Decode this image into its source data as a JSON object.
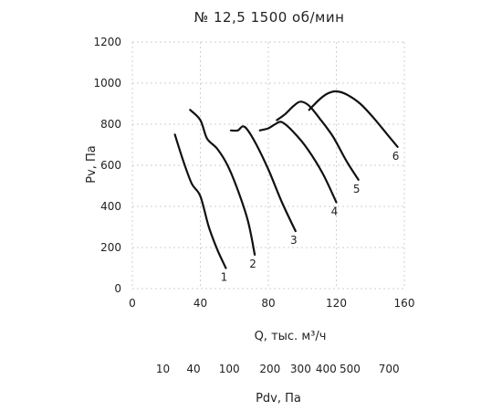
{
  "chart_data": {
    "type": "line",
    "title": "№ 12,5 1500 об/мин",
    "xlabel": "Q, тыс. м³/ч",
    "ylabel": "Pv, Па",
    "xlim": [
      0,
      160
    ],
    "ylim": [
      0,
      1200
    ],
    "xticks": [
      0,
      40,
      80,
      120,
      160
    ],
    "yticks": [
      0,
      200,
      400,
      600,
      800,
      1000,
      1200
    ],
    "grid": true,
    "secondary_axis": {
      "label": "Pdv, Па",
      "ticks": [
        {
          "label": "10",
          "q": 18
        },
        {
          "label": "40",
          "q": 36
        },
        {
          "label": "100",
          "q": 57
        },
        {
          "label": "200",
          "q": 81
        },
        {
          "label": "300",
          "q": 99
        },
        {
          "label": "400",
          "q": 114
        },
        {
          "label": "500",
          "q": 128
        },
        {
          "label": "700",
          "q": 151
        }
      ]
    },
    "series": [
      {
        "name": "1",
        "points": [
          [
            25,
            750
          ],
          [
            30,
            620
          ],
          [
            35,
            510
          ],
          [
            40,
            450
          ],
          [
            45,
            300
          ],
          [
            50,
            190
          ],
          [
            55,
            100
          ]
        ]
      },
      {
        "name": "2",
        "points": [
          [
            34,
            870
          ],
          [
            40,
            820
          ],
          [
            44,
            730
          ],
          [
            50,
            680
          ],
          [
            56,
            600
          ],
          [
            62,
            480
          ],
          [
            68,
            330
          ],
          [
            72,
            165
          ]
        ]
      },
      {
        "name": "3",
        "points": [
          [
            58,
            770
          ],
          [
            62,
            770
          ],
          [
            65,
            790
          ],
          [
            68,
            770
          ],
          [
            73,
            700
          ],
          [
            80,
            580
          ],
          [
            88,
            420
          ],
          [
            96,
            280
          ]
        ]
      },
      {
        "name": "4",
        "points": [
          [
            75,
            770
          ],
          [
            80,
            780
          ],
          [
            84,
            800
          ],
          [
            88,
            810
          ],
          [
            95,
            760
          ],
          [
            103,
            680
          ],
          [
            112,
            560
          ],
          [
            120,
            420
          ]
        ]
      },
      {
        "name": "5",
        "points": [
          [
            85,
            820
          ],
          [
            90,
            850
          ],
          [
            95,
            890
          ],
          [
            99,
            910
          ],
          [
            104,
            890
          ],
          [
            110,
            830
          ],
          [
            118,
            740
          ],
          [
            126,
            620
          ],
          [
            133,
            530
          ]
        ]
      },
      {
        "name": "6",
        "points": [
          [
            104,
            870
          ],
          [
            110,
            920
          ],
          [
            115,
            950
          ],
          [
            120,
            960
          ],
          [
            126,
            945
          ],
          [
            134,
            900
          ],
          [
            142,
            830
          ],
          [
            150,
            750
          ],
          [
            156,
            690
          ]
        ]
      }
    ]
  }
}
